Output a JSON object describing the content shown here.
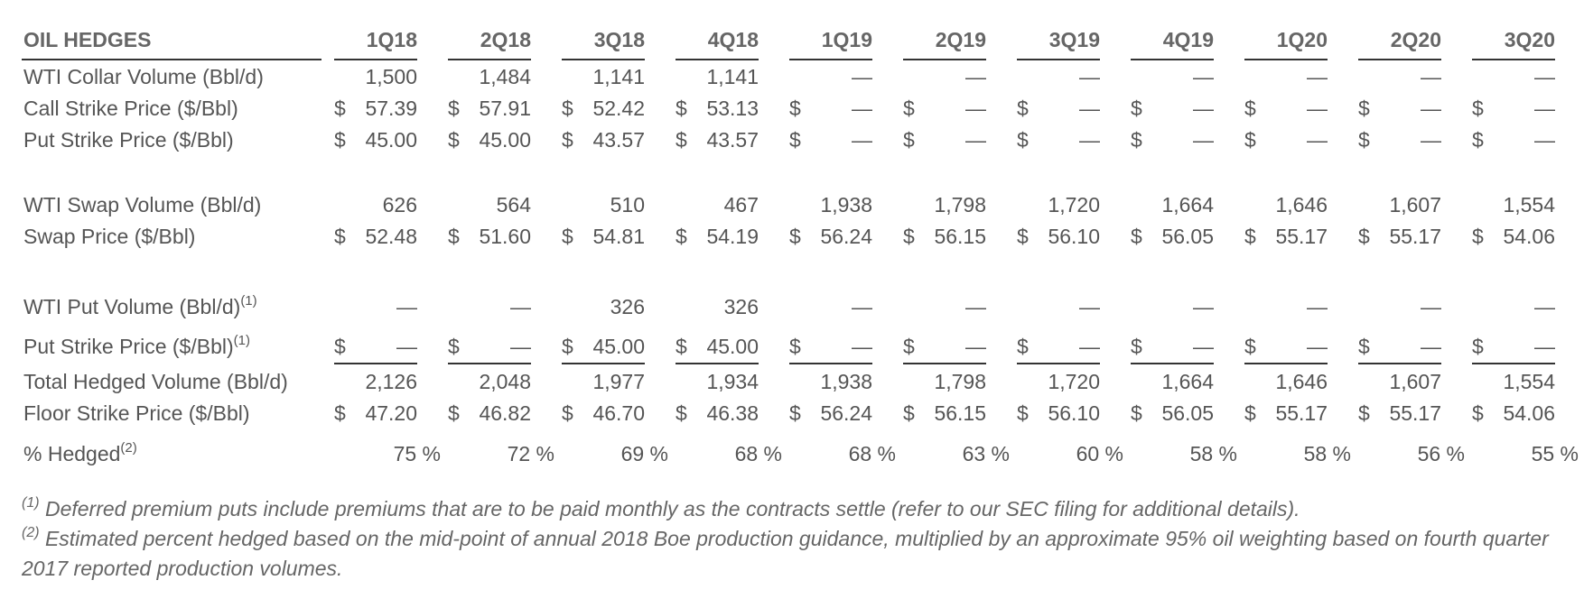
{
  "header_partial_text": "",
  "oil_hedges": {
    "title": "OIL HEDGES",
    "quarters": [
      "1Q18",
      "2Q18",
      "3Q18",
      "4Q18",
      "1Q19",
      "2Q19",
      "3Q19",
      "4Q19",
      "1Q20",
      "2Q20",
      "3Q20"
    ],
    "rows": [
      {
        "label": "WTI Collar Volume (Bbl/d)",
        "sup": "",
        "dollar": false,
        "underline": false,
        "values": [
          "1,500",
          "1,484",
          "1,141",
          "1,141",
          "—",
          "—",
          "—",
          "—",
          "—",
          "—",
          "—"
        ]
      },
      {
        "label": "Call Strike Price ($/Bbl)",
        "sup": "",
        "dollar": true,
        "underline": false,
        "values": [
          "57.39",
          "57.91",
          "52.42",
          "53.13",
          "—",
          "—",
          "—",
          "—",
          "—",
          "—",
          "—"
        ]
      },
      {
        "label": "Put Strike Price ($/Bbl)",
        "sup": "",
        "dollar": true,
        "underline": false,
        "values": [
          "45.00",
          "45.00",
          "43.57",
          "43.57",
          "—",
          "—",
          "—",
          "—",
          "—",
          "—",
          "—"
        ]
      },
      {
        "label": "WTI Swap Volume (Bbl/d)",
        "sup": "",
        "dollar": false,
        "underline": false,
        "values": [
          "626",
          "564",
          "510",
          "467",
          "1,938",
          "1,798",
          "1,720",
          "1,664",
          "1,646",
          "1,607",
          "1,554"
        ]
      },
      {
        "label": "Swap Price ($/Bbl)",
        "sup": "",
        "dollar": true,
        "underline": false,
        "values": [
          "52.48",
          "51.60",
          "54.81",
          "54.19",
          "56.24",
          "56.15",
          "56.10",
          "56.05",
          "55.17",
          "55.17",
          "54.06"
        ]
      },
      {
        "label": "WTI Put Volume (Bbl/d)",
        "sup": "(1)",
        "dollar": false,
        "underline": false,
        "values": [
          "—",
          "—",
          "326",
          "326",
          "—",
          "—",
          "—",
          "—",
          "—",
          "—",
          "—"
        ]
      },
      {
        "label": "Put Strike Price ($/Bbl)",
        "sup": "(1)",
        "dollar": true,
        "underline": true,
        "values": [
          "—",
          "—",
          "45.00",
          "45.00",
          "—",
          "—",
          "—",
          "—",
          "—",
          "—",
          "—"
        ]
      },
      {
        "label": "Total Hedged Volume (Bbl/d)",
        "sup": "",
        "dollar": false,
        "underline": false,
        "values": [
          "2,126",
          "2,048",
          "1,977",
          "1,934",
          "1,938",
          "1,798",
          "1,720",
          "1,664",
          "1,646",
          "1,607",
          "1,554"
        ]
      },
      {
        "label": "Floor Strike Price ($/Bbl)",
        "sup": "",
        "dollar": true,
        "underline": false,
        "values": [
          "47.20",
          "46.82",
          "46.70",
          "46.38",
          "56.24",
          "56.15",
          "56.10",
          "56.05",
          "55.17",
          "55.17",
          "54.06"
        ]
      },
      {
        "label": "% Hedged",
        "sup": "(2)",
        "dollar": false,
        "underline": false,
        "percent": true,
        "values": [
          "75 %",
          "72 %",
          "69 %",
          "68 %",
          "68 %",
          "63 %",
          "60 %",
          "58 %",
          "58 %",
          "56 %",
          "55 %"
        ]
      }
    ]
  },
  "footnotes": [
    {
      "marker": "(1)",
      "text": " Deferred premium puts include premiums that are to be paid monthly as the contracts settle (refer to our SEC filing for additional details)."
    },
    {
      "marker": "(2)",
      "text": " Estimated percent hedged based on the mid-point of annual 2018 Boe production guidance, multiplied by an approximate 95% oil weighting based on fourth quarter 2017 reported production volumes."
    }
  ]
}
